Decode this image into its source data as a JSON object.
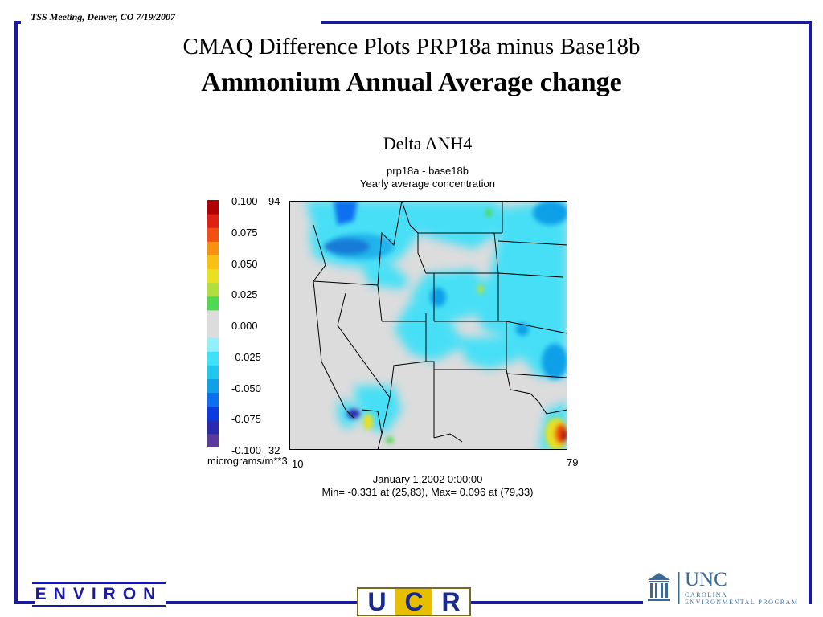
{
  "header": {
    "meeting": "TSS Meeting, Denver, CO  7/19/2007"
  },
  "slide": {
    "title_line1": "CMAQ Difference Plots PRP18a minus Base18b",
    "title_line2": "Ammonium Annual Average change"
  },
  "plot": {
    "title": "Delta ANH4",
    "subtitle1": "prp18a - base18b",
    "subtitle2": "Yearly average concentration",
    "units": "micrograms/m**3",
    "y_top": "94",
    "y_bottom": "32",
    "x_left": "10",
    "x_right": "79",
    "timestamp": "January 1,2002 0:00:00",
    "minmax": "Min=  -0.331 at (25,83), Max=   0.096 at (79,33)",
    "colorbar": {
      "labels": [
        "0.100",
        "0.075",
        "0.050",
        "0.025",
        "0.000",
        "-0.025",
        "-0.050",
        "-0.075",
        "-0.100"
      ],
      "colors": [
        "#5a3a9a",
        "#2a2ab0",
        "#0a3ae0",
        "#0a70f0",
        "#10a0e8",
        "#20c8f0",
        "#40e0f8",
        "#90f0fc",
        "#dcdcdc",
        "#dcdcdc",
        "#50d850",
        "#b0e040",
        "#e8e020",
        "#f8c010",
        "#f89010",
        "#f05010",
        "#e02010",
        "#b00000"
      ]
    }
  },
  "logos": {
    "environ": "ENVIRON",
    "ucr": [
      "U",
      "C",
      "R"
    ],
    "unc": "UNC",
    "unc_sub1": "CAROLINA",
    "unc_sub2": "ENVIRONMENTAL PROGRAM"
  }
}
